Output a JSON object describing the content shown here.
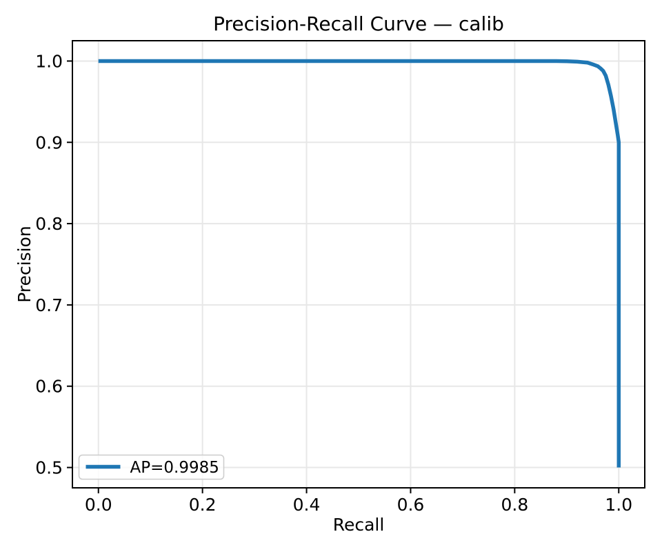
{
  "chart_data": {
    "type": "line",
    "title": "Precision-Recall Curve — calib",
    "xlabel": "Recall",
    "ylabel": "Precision",
    "xlim": [
      -0.05,
      1.05
    ],
    "ylim": [
      0.475,
      1.025
    ],
    "x_ticks": [
      0.0,
      0.2,
      0.4,
      0.6,
      0.8,
      1.0
    ],
    "y_ticks": [
      0.5,
      0.6,
      0.7,
      0.8,
      0.9,
      1.0
    ],
    "tick_decimals": 1,
    "grid": true,
    "legend": {
      "label": "AP=0.9985",
      "position": "lower left"
    },
    "ap": 0.9985,
    "series": [
      {
        "name": "AP=0.9985",
        "color": "#1f77b4",
        "points": [
          [
            0.0,
            1.0
          ],
          [
            0.1,
            1.0
          ],
          [
            0.2,
            1.0
          ],
          [
            0.3,
            1.0
          ],
          [
            0.4,
            1.0
          ],
          [
            0.5,
            1.0
          ],
          [
            0.6,
            1.0
          ],
          [
            0.7,
            1.0
          ],
          [
            0.8,
            1.0
          ],
          [
            0.85,
            1.0
          ],
          [
            0.88,
            1.0
          ],
          [
            0.9,
            0.9997
          ],
          [
            0.92,
            0.9992
          ],
          [
            0.94,
            0.998
          ],
          [
            0.95,
            0.996
          ],
          [
            0.96,
            0.9935
          ],
          [
            0.965,
            0.991
          ],
          [
            0.97,
            0.988
          ],
          [
            0.975,
            0.982
          ],
          [
            0.98,
            0.971
          ],
          [
            0.985,
            0.957
          ],
          [
            0.99,
            0.941
          ],
          [
            0.995,
            0.921
          ],
          [
            0.998,
            0.909
          ],
          [
            1.0,
            0.9
          ],
          [
            1.0,
            0.5
          ]
        ]
      }
    ]
  },
  "style": {
    "line_color": "#1f77b4",
    "grid_color": "#e7e7e7",
    "spine_color": "#000000",
    "tick_color": "#000000",
    "text_color": "#000000",
    "legend_border_color": "#cccccc",
    "legend_background": "rgba(255,255,255,0.8)",
    "background": "#ffffff"
  }
}
